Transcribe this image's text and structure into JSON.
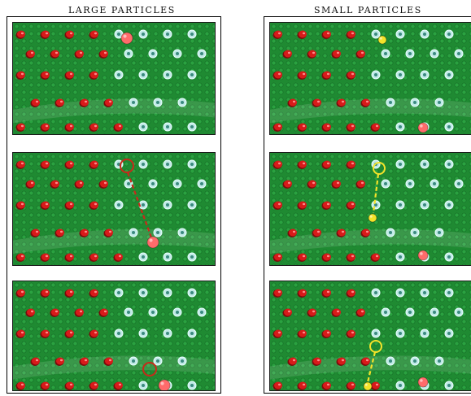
{
  "headings": {
    "large": "LARGE PARTICLES",
    "small": "SMALL PARTICLES"
  },
  "colors": {
    "board": "#1f8a32",
    "board_dark": "#136a24",
    "peg_red": "#d81a1a",
    "peg_cyan": "#bfe9e6",
    "large_particle": "#ff6b6b",
    "small_particle": "#f4e32a",
    "trajectory_large": "#c72a1a",
    "trajectory_small": "#f4e32a"
  },
  "icons": {
    "peg": "peg-icon",
    "particle": "particle-icon"
  }
}
